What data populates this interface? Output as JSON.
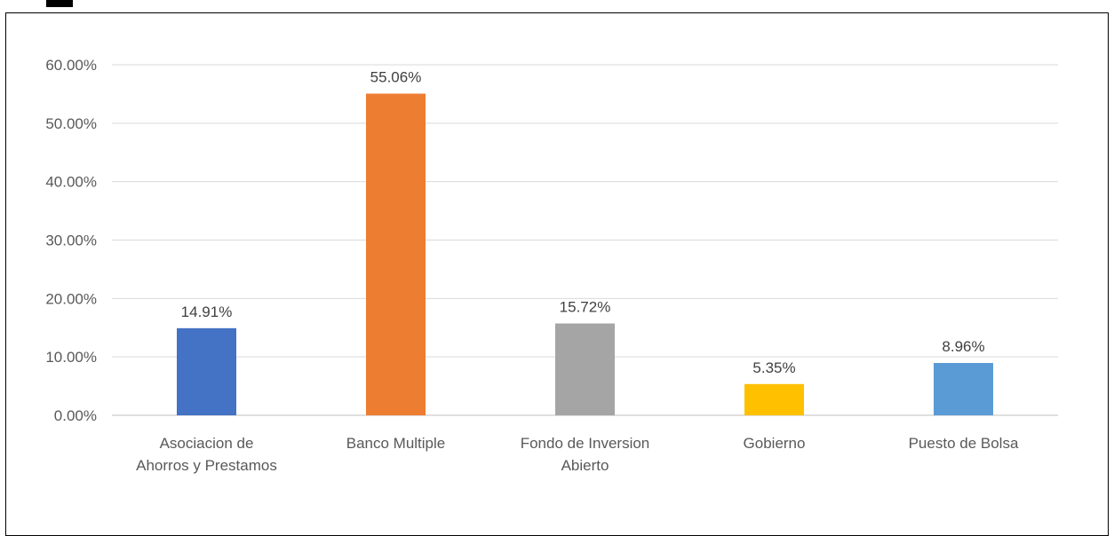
{
  "chart_data": {
    "type": "bar",
    "title": "",
    "xlabel": "",
    "ylabel": "",
    "categories": [
      [
        "Asociacion de",
        "Ahorros y Prestamos"
      ],
      [
        "Banco Multiple"
      ],
      [
        "Fondo de Inversion",
        "Abierto"
      ],
      [
        "Gobierno"
      ],
      [
        "Puesto de Bolsa"
      ]
    ],
    "values": [
      14.91,
      55.06,
      15.72,
      5.35,
      8.96
    ],
    "data_labels": [
      "14.91%",
      "55.06%",
      "15.72%",
      "5.35%",
      "8.96%"
    ],
    "colors": [
      "#4472C4",
      "#ED7D31",
      "#A5A5A5",
      "#FFC000",
      "#5B9BD5"
    ],
    "ylim": [
      0,
      60
    ],
    "yticks": [
      0,
      10,
      20,
      30,
      40,
      50,
      60
    ],
    "ytick_labels": [
      "0.00%",
      "10.00%",
      "20.00%",
      "30.00%",
      "40.00%",
      "50.00%",
      "60.00%"
    ],
    "grid": true,
    "legend": "none"
  }
}
